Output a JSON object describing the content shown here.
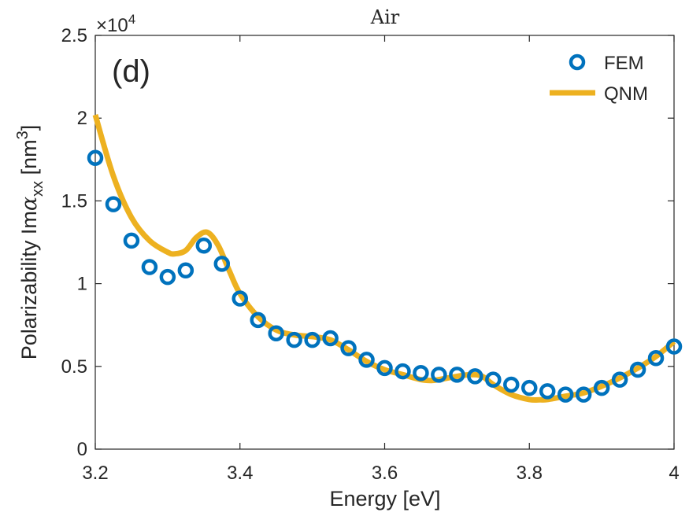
{
  "chart_data": {
    "type": "line",
    "title": "Air",
    "panel_label": "(d)",
    "xlabel": "Energy [eV]",
    "ylabel": {
      "prefix": "Polarizability Im",
      "alpha": "α",
      "sub": "xx",
      "unit_open": " [nm",
      "sup": "3",
      "unit_close": "]"
    },
    "y_multiplier": {
      "base": "×10",
      "exp": "4"
    },
    "xlim": [
      3.2,
      4.0
    ],
    "ylim": [
      0,
      25000
    ],
    "xticks": [
      3.2,
      3.4,
      3.6,
      3.8,
      4.0
    ],
    "xtick_labels": [
      "3.2",
      "3.4",
      "3.6",
      "3.8",
      "4"
    ],
    "yticks": [
      0,
      5000,
      10000,
      15000,
      20000,
      25000
    ],
    "ytick_labels": [
      "0",
      "0.5",
      "1",
      "1.5",
      "2",
      "2.5"
    ],
    "grid": false,
    "legend_position": "top-right",
    "series": [
      {
        "name": "FEM",
        "style": "markers",
        "marker": "circle-open",
        "color": "#0072BD",
        "x": [
          3.2,
          3.225,
          3.25,
          3.275,
          3.3,
          3.325,
          3.35,
          3.375,
          3.4,
          3.425,
          3.45,
          3.475,
          3.5,
          3.525,
          3.55,
          3.575,
          3.6,
          3.625,
          3.65,
          3.675,
          3.7,
          3.725,
          3.75,
          3.775,
          3.8,
          3.825,
          3.85,
          3.875,
          3.9,
          3.925,
          3.95,
          3.975,
          4.0
        ],
        "y": [
          17600,
          14800,
          12600,
          11000,
          10400,
          10800,
          12300,
          11200,
          9100,
          7800,
          7000,
          6600,
          6600,
          6700,
          6100,
          5400,
          4900,
          4700,
          4600,
          4500,
          4500,
          4400,
          4200,
          3900,
          3700,
          3500,
          3300,
          3300,
          3700,
          4200,
          4800,
          5500,
          6200
        ]
      },
      {
        "name": "QNM",
        "style": "line",
        "color": "#EDB120",
        "x": [
          3.2,
          3.225,
          3.25,
          3.275,
          3.3,
          3.31,
          3.325,
          3.34,
          3.355,
          3.37,
          3.385,
          3.4,
          3.425,
          3.45,
          3.475,
          3.5,
          3.525,
          3.55,
          3.575,
          3.6,
          3.625,
          3.65,
          3.665,
          3.675,
          3.7,
          3.72,
          3.735,
          3.75,
          3.775,
          3.8,
          3.815,
          3.825,
          3.85,
          3.875,
          3.9,
          3.925,
          3.95,
          3.975,
          4.0
        ],
        "y": [
          20200,
          16500,
          14000,
          12600,
          11900,
          11800,
          12000,
          12800,
          13100,
          12300,
          10800,
          9400,
          8000,
          7200,
          6900,
          6800,
          6600,
          6000,
          5300,
          4800,
          4500,
          4200,
          4150,
          4200,
          4400,
          4500,
          4400,
          3900,
          3300,
          3000,
          2980,
          3000,
          3200,
          3400,
          3800,
          4300,
          4900,
          5600,
          6500
        ]
      }
    ]
  }
}
